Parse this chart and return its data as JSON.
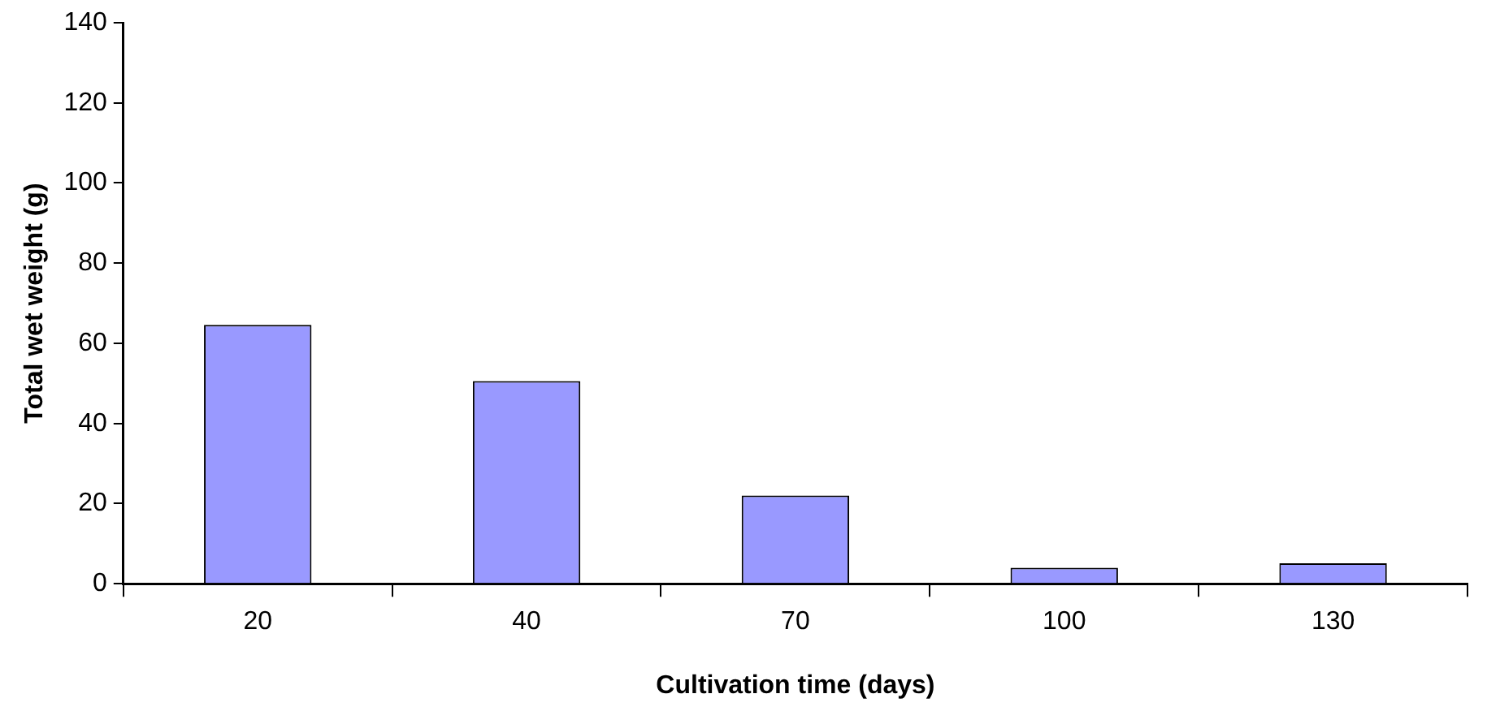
{
  "chart_data": {
    "type": "bar",
    "xlabel": "Cultivation time (days)",
    "ylabel": "Total wet weight (g)",
    "categories": [
      "20",
      "40",
      "70",
      "100",
      "130"
    ],
    "series": [
      {
        "color": "#9999ff",
        "values": [
          64.6,
          50.6,
          22,
          4,
          5.1
        ]
      }
    ],
    "ylim": [
      0,
      140
    ],
    "yticks": [
      0,
      20,
      40,
      60,
      80,
      100,
      120,
      140
    ],
    "grid": false,
    "legend": false
  }
}
